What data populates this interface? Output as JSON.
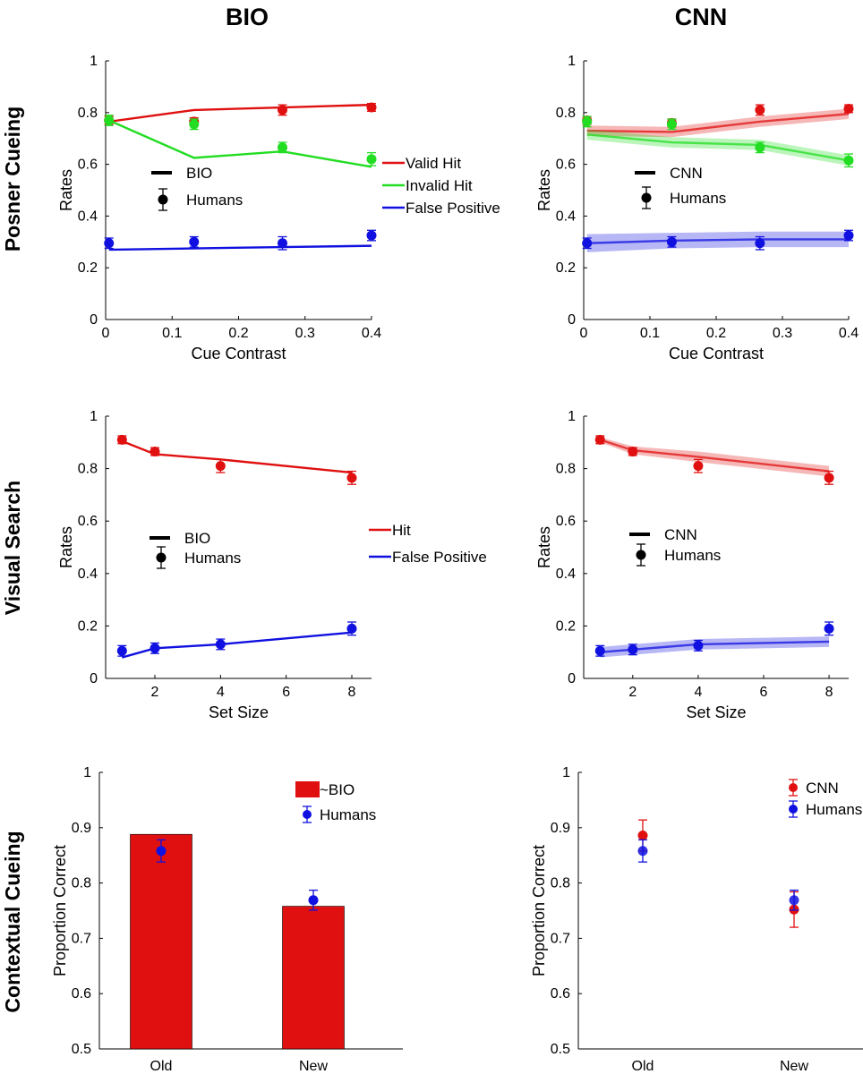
{
  "figure": {
    "column_titles": [
      "BIO",
      "CNN"
    ],
    "row_titles": [
      "Posner Cueing",
      "Visual Search",
      "Contextual Cueing"
    ]
  },
  "colors": {
    "red": "#e01010",
    "green": "#22dd22",
    "blue": "#1010e0",
    "black": "#000000"
  },
  "chart_data": [
    {
      "id": "posner-bio",
      "type": "line",
      "xlabel": "Cue Contrast",
      "ylabel": "Rates",
      "xlim": [
        0,
        0.4
      ],
      "ylim": [
        0,
        1
      ],
      "xticks": [
        0,
        0.1,
        0.2,
        0.3,
        0.4
      ],
      "xtick_labels": [
        "0",
        "0.1",
        "0.2",
        "0.3",
        "0.4"
      ],
      "yticks": [
        0,
        0.2,
        0.4,
        0.6,
        0.8,
        1
      ],
      "ytick_labels": [
        "0",
        "0.2",
        "0.4",
        "0.6",
        "0.8",
        "1"
      ],
      "legend_markers": {
        "model_label": "BIO",
        "humans_label": "Humans"
      },
      "series_legend": [
        "Valid Hit",
        "Invalid Hit",
        "False Positive"
      ],
      "series": [
        {
          "name": "Valid Hit",
          "color": "red",
          "model": {
            "x": [
              0.005,
              0.133,
              0.266,
              0.4
            ],
            "y": [
              0.765,
              0.81,
              0.82,
              0.83
            ]
          },
          "humans": {
            "x": [
              0.005,
              0.133,
              0.266,
              0.4
            ],
            "y": [
              0.77,
              0.765,
              0.81,
              0.82
            ],
            "err": [
              0.015,
              0.015,
              0.02,
              0.015
            ]
          }
        },
        {
          "name": "Invalid Hit",
          "color": "green",
          "model": {
            "x": [
              0.005,
              0.133,
              0.266,
              0.4
            ],
            "y": [
              0.77,
              0.625,
              0.65,
              0.59
            ]
          },
          "humans": {
            "x": [
              0.005,
              0.133,
              0.266,
              0.4
            ],
            "y": [
              0.77,
              0.755,
              0.665,
              0.62
            ],
            "err": [
              0.02,
              0.02,
              0.02,
              0.025
            ]
          }
        },
        {
          "name": "False Positive",
          "color": "blue",
          "model": {
            "x": [
              0.005,
              0.133,
              0.266,
              0.4
            ],
            "y": [
              0.27,
              0.275,
              0.28,
              0.285
            ]
          },
          "humans": {
            "x": [
              0.005,
              0.133,
              0.266,
              0.4
            ],
            "y": [
              0.295,
              0.3,
              0.295,
              0.325
            ],
            "err": [
              0.02,
              0.02,
              0.025,
              0.02
            ]
          }
        }
      ]
    },
    {
      "id": "posner-cnn",
      "type": "line",
      "xlabel": "Cue Contrast",
      "ylabel": "Rates",
      "xlim": [
        0,
        0.4
      ],
      "ylim": [
        0,
        1
      ],
      "xticks": [
        0,
        0.1,
        0.2,
        0.3,
        0.4
      ],
      "xtick_labels": [
        "0",
        "0.1",
        "0.2",
        "0.3",
        "0.4"
      ],
      "yticks": [
        0,
        0.2,
        0.4,
        0.6,
        0.8,
        1
      ],
      "ytick_labels": [
        "0",
        "0.2",
        "0.4",
        "0.6",
        "0.8",
        "1"
      ],
      "legend_markers": {
        "model_label": "CNN",
        "humans_label": "Humans"
      },
      "series_legend": [],
      "series": [
        {
          "name": "Valid Hit",
          "color": "red",
          "model": {
            "x": [
              0.005,
              0.133,
              0.266,
              0.4
            ],
            "y": [
              0.73,
              0.725,
              0.765,
              0.795
            ],
            "band": [
              0.02,
              0.02,
              0.02,
              0.02
            ]
          },
          "humans": {
            "x": [
              0.005,
              0.133,
              0.266,
              0.4
            ],
            "y": [
              0.77,
              0.76,
              0.81,
              0.815
            ],
            "err": [
              0.015,
              0.015,
              0.02,
              0.015
            ]
          }
        },
        {
          "name": "Invalid Hit",
          "color": "green",
          "model": {
            "x": [
              0.005,
              0.133,
              0.266,
              0.4
            ],
            "y": [
              0.715,
              0.685,
              0.675,
              0.615
            ],
            "band": [
              0.02,
              0.02,
              0.02,
              0.02
            ]
          },
          "humans": {
            "x": [
              0.005,
              0.133,
              0.266,
              0.4
            ],
            "y": [
              0.765,
              0.755,
              0.665,
              0.615
            ],
            "err": [
              0.02,
              0.02,
              0.02,
              0.025
            ]
          }
        },
        {
          "name": "False Positive",
          "color": "blue",
          "model": {
            "x": [
              0.005,
              0.133,
              0.266,
              0.4
            ],
            "y": [
              0.295,
              0.305,
              0.31,
              0.31
            ],
            "band": [
              0.035,
              0.03,
              0.03,
              0.03
            ]
          },
          "humans": {
            "x": [
              0.005,
              0.133,
              0.266,
              0.4
            ],
            "y": [
              0.295,
              0.3,
              0.295,
              0.325
            ],
            "err": [
              0.02,
              0.02,
              0.025,
              0.02
            ]
          }
        }
      ]
    },
    {
      "id": "search-bio",
      "type": "line",
      "xlabel": "Set Size",
      "ylabel": "Rates",
      "xlim": [
        0.5,
        8.6
      ],
      "ylim": [
        0,
        1
      ],
      "xticks": [
        2,
        4,
        6,
        8
      ],
      "xtick_labels": [
        "2",
        "4",
        "6",
        "8"
      ],
      "yticks": [
        0,
        0.2,
        0.4,
        0.6,
        0.8,
        1
      ],
      "ytick_labels": [
        "0",
        "0.2",
        "0.4",
        "0.6",
        "0.8",
        "1"
      ],
      "legend_markers": {
        "model_label": "BIO",
        "humans_label": "Humans"
      },
      "series_legend": [
        "Hit",
        "False Positive"
      ],
      "series": [
        {
          "name": "Hit",
          "color": "red",
          "model": {
            "x": [
              1,
              2,
              4,
              8
            ],
            "y": [
              0.905,
              0.855,
              0.835,
              0.785
            ]
          },
          "humans": {
            "x": [
              1,
              2,
              4,
              8
            ],
            "y": [
              0.91,
              0.865,
              0.81,
              0.765
            ],
            "err": [
              0.015,
              0.015,
              0.025,
              0.025
            ]
          }
        },
        {
          "name": "False Positive",
          "color": "blue",
          "model": {
            "x": [
              1,
              2,
              4,
              8
            ],
            "y": [
              0.08,
              0.115,
              0.13,
              0.175
            ]
          },
          "humans": {
            "x": [
              1,
              2,
              4,
              8
            ],
            "y": [
              0.105,
              0.115,
              0.13,
              0.19
            ],
            "err": [
              0.02,
              0.02,
              0.02,
              0.025
            ]
          }
        }
      ]
    },
    {
      "id": "search-cnn",
      "type": "line",
      "xlabel": "Set Size",
      "ylabel": "Rates",
      "xlim": [
        0.5,
        8.6
      ],
      "ylim": [
        0,
        1
      ],
      "xticks": [
        2,
        4,
        6,
        8
      ],
      "xtick_labels": [
        "2",
        "4",
        "6",
        "8"
      ],
      "yticks": [
        0,
        0.2,
        0.4,
        0.6,
        0.8,
        1
      ],
      "ytick_labels": [
        "0",
        "0.2",
        "0.4",
        "0.6",
        "0.8",
        "1"
      ],
      "legend_markers": {
        "model_label": "CNN",
        "humans_label": "Humans"
      },
      "series_legend": [],
      "series": [
        {
          "name": "Hit",
          "color": "red",
          "model": {
            "x": [
              1,
              2,
              4,
              8
            ],
            "y": [
              0.91,
              0.87,
              0.845,
              0.79
            ],
            "band": [
              0.01,
              0.015,
              0.02,
              0.02
            ]
          },
          "humans": {
            "x": [
              1,
              2,
              4,
              8
            ],
            "y": [
              0.91,
              0.865,
              0.81,
              0.765
            ],
            "err": [
              0.015,
              0.015,
              0.025,
              0.025
            ]
          }
        },
        {
          "name": "False Positive",
          "color": "blue",
          "model": {
            "x": [
              1,
              2,
              4,
              8
            ],
            "y": [
              0.1,
              0.11,
              0.13,
              0.14
            ],
            "band": [
              0.02,
              0.02,
              0.02,
              0.02
            ]
          },
          "humans": {
            "x": [
              1,
              2,
              4,
              8
            ],
            "y": [
              0.105,
              0.11,
              0.125,
              0.19
            ],
            "err": [
              0.02,
              0.02,
              0.02,
              0.025
            ]
          }
        }
      ]
    },
    {
      "id": "context-bio",
      "type": "bar",
      "ylabel": "Proportion Correct",
      "ylim": [
        0.5,
        1
      ],
      "yticks": [
        0.5,
        0.6,
        0.7,
        0.8,
        0.9,
        1
      ],
      "ytick_labels": [
        "0.5",
        "0.6",
        "0.7",
        "0.8",
        "0.9",
        "1"
      ],
      "categories": [
        "Old",
        "New"
      ],
      "legend": [
        {
          "label": "~BIO",
          "kind": "bar",
          "color": "red"
        },
        {
          "label": "Humans",
          "kind": "point",
          "color": "blue"
        }
      ],
      "bars": {
        "name": "~BIO",
        "color": "red",
        "values": [
          0.888,
          0.758
        ]
      },
      "humans": {
        "color": "blue",
        "values": [
          0.858,
          0.769
        ],
        "err": [
          0.02,
          0.018
        ]
      }
    },
    {
      "id": "context-cnn",
      "type": "scatter",
      "ylabel": "Proportion Correct",
      "ylim": [
        0.5,
        1
      ],
      "yticks": [
        0.5,
        0.6,
        0.7,
        0.8,
        0.9,
        1
      ],
      "ytick_labels": [
        "0.5",
        "0.6",
        "0.7",
        "0.8",
        "0.9",
        "1"
      ],
      "categories": [
        "Old",
        "New"
      ],
      "legend": [
        {
          "label": "CNN",
          "kind": "point",
          "color": "red"
        },
        {
          "label": "Humans",
          "kind": "point",
          "color": "blue"
        }
      ],
      "model": {
        "name": "CNN",
        "color": "red",
        "values": [
          0.886,
          0.752
        ],
        "err": [
          0.028,
          0.032
        ]
      },
      "humans": {
        "color": "blue",
        "values": [
          0.858,
          0.769
        ],
        "err": [
          0.02,
          0.018
        ]
      }
    }
  ]
}
